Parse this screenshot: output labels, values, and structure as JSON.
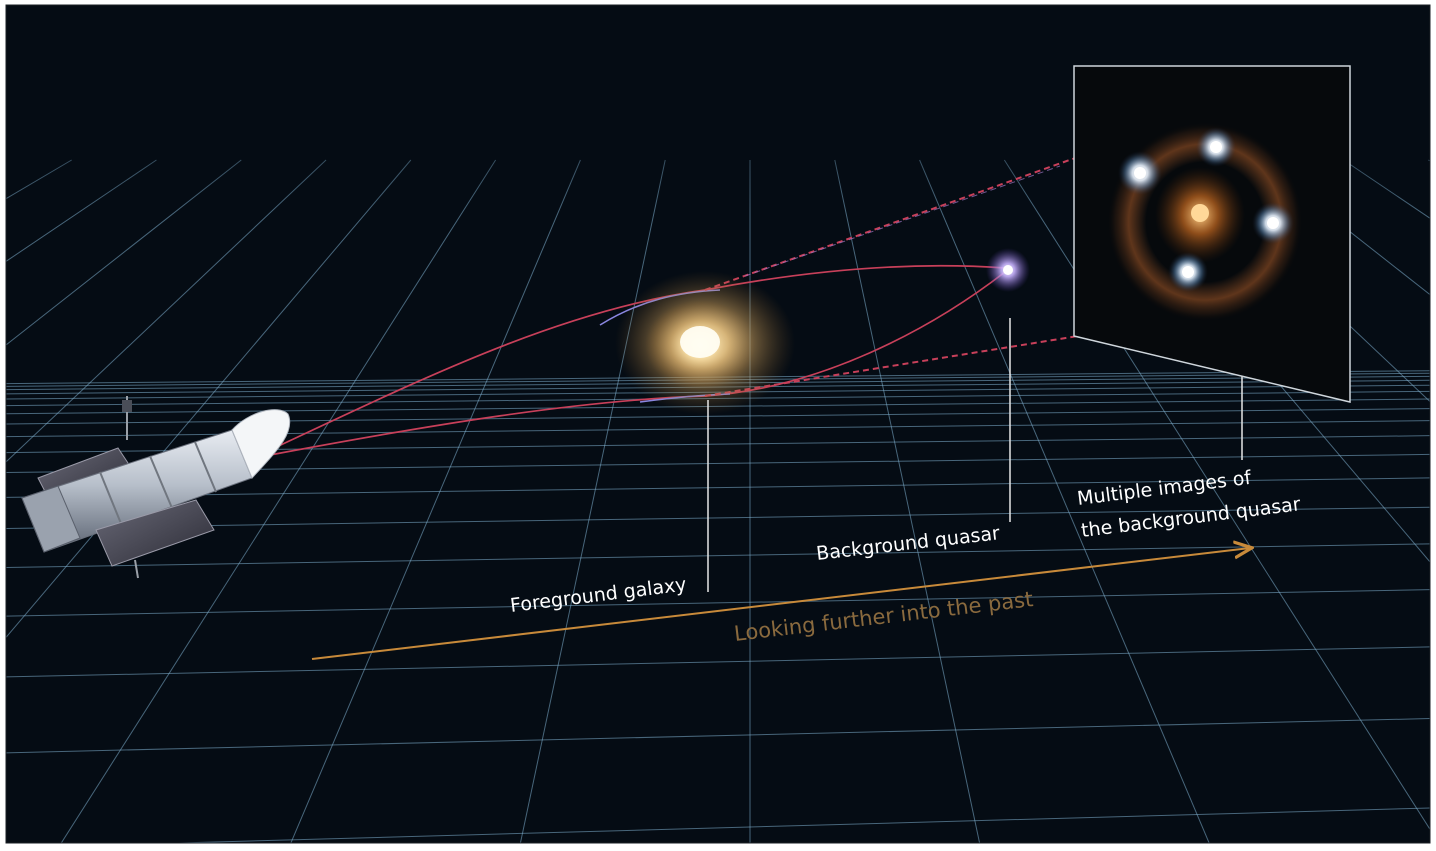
{
  "labels": {
    "foreground_galaxy": "Foreground galaxy",
    "background_quasar": "Background quasar",
    "multiple_images_line1": "Multiple images of",
    "multiple_images_line2": "the background quasar",
    "time_arrow": "Looking further into the past"
  },
  "colors": {
    "space": "#050c14",
    "grid": "#7fb0d0",
    "light_path_red": "#c8405a",
    "light_path_blue": "#7d7ad8",
    "time_arrow": "#c88a3a",
    "galaxy_core": "#fff6d8",
    "quasar": "#b89cff"
  },
  "icons": {
    "telescope": "hubble-telescope-icon",
    "galaxy": "lensing-galaxy-icon",
    "quasar": "quasar-icon",
    "inset": "einstein-cross-image"
  }
}
